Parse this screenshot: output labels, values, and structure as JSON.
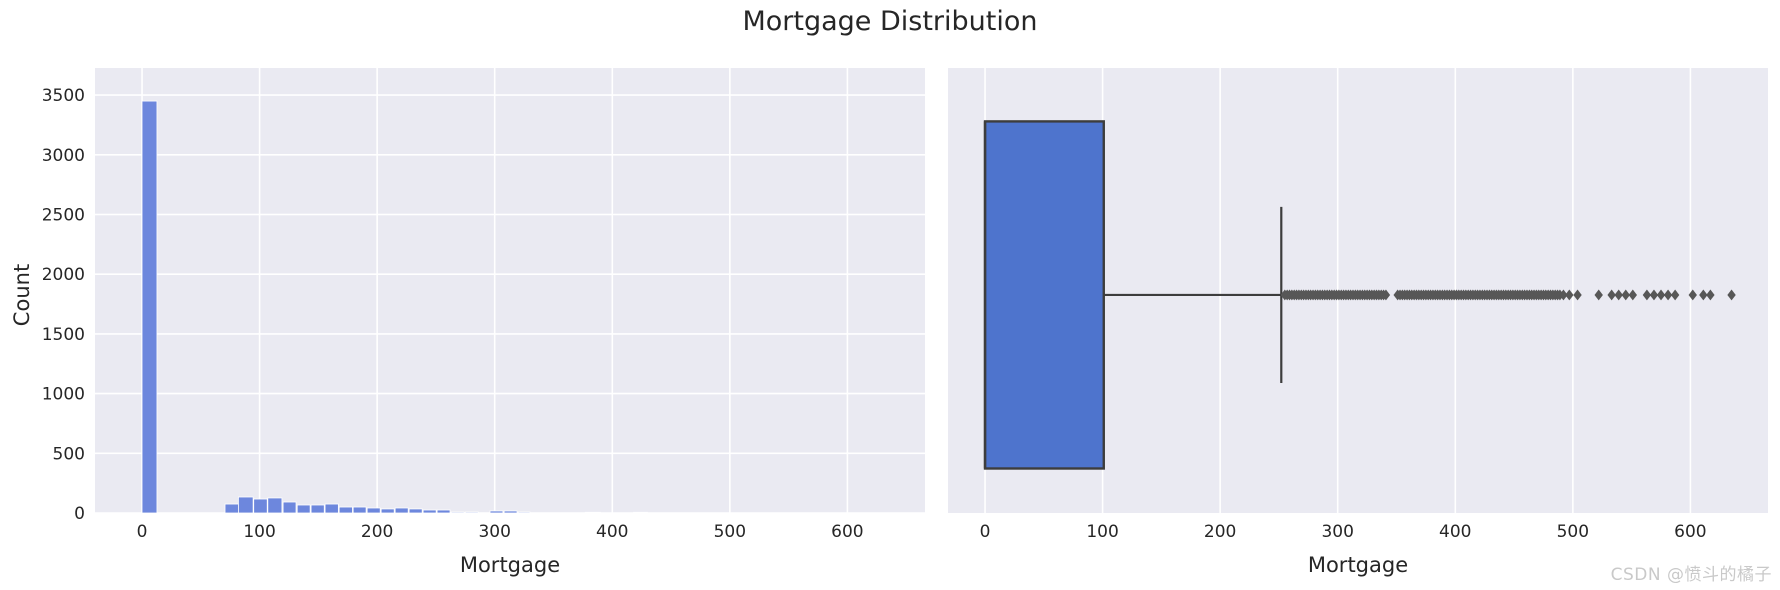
{
  "title": "Mortgage Distribution",
  "watermark": "CSDN @愤斗的橘子",
  "colors": {
    "plot_bg": "#eaeaf2",
    "grid": "#ffffff",
    "hist_bar": "#6d87dd",
    "hist_bar_edge": "#ffffff",
    "box_fill": "#4e74cd",
    "box_edge": "#3d3d3d",
    "whisker": "#3d3d3d",
    "outlier": "#575757",
    "text": "#262626",
    "watermark_text": "#c9c9c9"
  },
  "chart_data": [
    {
      "type": "bar",
      "subtype": "histogram",
      "xlabel": "Mortgage",
      "ylabel": "Count",
      "xlim": [
        -40,
        666
      ],
      "ylim": [
        0,
        3727
      ],
      "xticks": [
        0,
        100,
        200,
        300,
        400,
        500,
        600
      ],
      "yticks": [
        0,
        500,
        1000,
        1500,
        2000,
        2500,
        3000,
        3500
      ],
      "grid": "both",
      "legend": "none",
      "bins": [
        [
          0,
          12.7,
          3450
        ],
        [
          70.6,
          82,
          75
        ],
        [
          82,
          94.5,
          134
        ],
        [
          95,
          106.5,
          117
        ],
        [
          107,
          119,
          126
        ],
        [
          120,
          131,
          92
        ],
        [
          132,
          143,
          67
        ],
        [
          143.8,
          155,
          67
        ],
        [
          155.7,
          167,
          75
        ],
        [
          167.7,
          179,
          50
        ],
        [
          179.6,
          190.6,
          50
        ],
        [
          191.5,
          202.6,
          42
        ],
        [
          203.4,
          214.5,
          34
        ],
        [
          215.3,
          226.4,
          42
        ],
        [
          227.2,
          238.3,
          34
        ],
        [
          239.1,
          250.2,
          25
        ],
        [
          251,
          262,
          25
        ],
        [
          263,
          274,
          8
        ],
        [
          275,
          286,
          8
        ],
        [
          296,
          307,
          17
        ],
        [
          308,
          319,
          17
        ],
        [
          320,
          330,
          8
        ],
        [
          377,
          390,
          6
        ],
        [
          418,
          430,
          6
        ]
      ]
    },
    {
      "type": "boxplot",
      "orientation": "horizontal",
      "xlabel": "Mortgage",
      "xlim": [
        -31.5,
        666
      ],
      "xticks": [
        0,
        100,
        200,
        300,
        400,
        500,
        600
      ],
      "grid": "vertical",
      "q1": 0,
      "median": 0,
      "q3": 101,
      "whisker_low": 0,
      "whisker_high": 252,
      "outliers": [
        255,
        257,
        259,
        261,
        263,
        265,
        267,
        269,
        271,
        273,
        275,
        277,
        279,
        281,
        283,
        285,
        287,
        289,
        291,
        293,
        295,
        297,
        299,
        301,
        303,
        305,
        307,
        309,
        311,
        313,
        315,
        317,
        319,
        321,
        323,
        325,
        327,
        329,
        331,
        333,
        335,
        337,
        339,
        341,
        351,
        353,
        355,
        357,
        359,
        361,
        363,
        365,
        367,
        369,
        371,
        373,
        375,
        377,
        379,
        381,
        383,
        385,
        387,
        389,
        391,
        393,
        395,
        397,
        399,
        401,
        403,
        405,
        407,
        409,
        411,
        413,
        415,
        417,
        419,
        421,
        423,
        425,
        427,
        429,
        431,
        433,
        435,
        437,
        439,
        441,
        443,
        445,
        447,
        449,
        451,
        453,
        455,
        457,
        459,
        461,
        463,
        465,
        467,
        469,
        471,
        473,
        475,
        477,
        479,
        481,
        483,
        485,
        487,
        489,
        492,
        497,
        504,
        522,
        533,
        539,
        545,
        551,
        563,
        569,
        575,
        581,
        587,
        602,
        611,
        617,
        635
      ]
    }
  ]
}
